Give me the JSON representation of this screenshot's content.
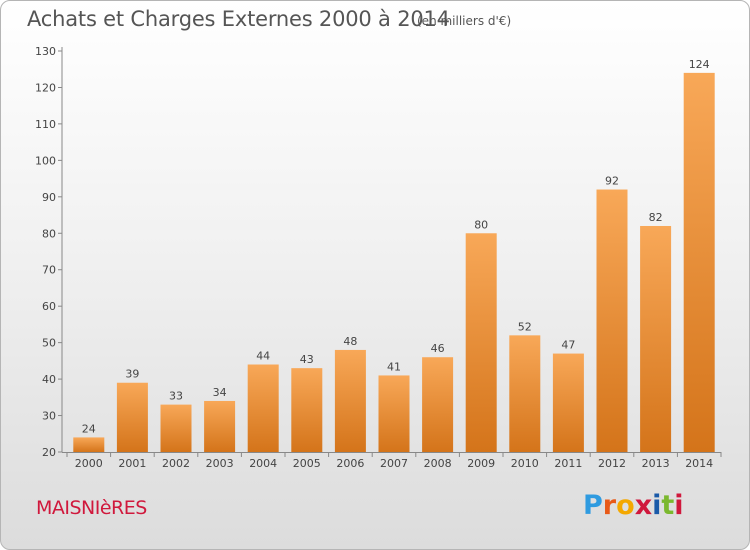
{
  "header": {
    "title": "Achats et Charges Externes 2000 à 2014",
    "unit": "(en milliers d'€)"
  },
  "footer": {
    "commune": "MAISNIèRES",
    "logo_letters": [
      "P",
      "r",
      "o",
      "x",
      "i",
      "t",
      "i"
    ],
    "logo_colors": [
      "#2f9be0",
      "#e85a18",
      "#f4a800",
      "#d0183c",
      "#1a5aa8",
      "#7bb82e",
      "#d0183c"
    ]
  },
  "chart_data": {
    "type": "bar",
    "title": "Achats et Charges Externes 2000 à 2014",
    "subtitle": "(en milliers d'€)",
    "categories": [
      "2000",
      "2001",
      "2002",
      "2003",
      "2004",
      "2005",
      "2006",
      "2007",
      "2008",
      "2009",
      "2010",
      "2011",
      "2012",
      "2013",
      "2014"
    ],
    "values": [
      24,
      39,
      33,
      34,
      44,
      43,
      48,
      41,
      46,
      80,
      52,
      47,
      92,
      82,
      124
    ],
    "ylim": [
      20,
      130
    ],
    "yticks": [
      20,
      30,
      40,
      50,
      60,
      70,
      80,
      90,
      100,
      110,
      120,
      130
    ],
    "grid": false,
    "colors": {
      "bar_light": "#f8a858",
      "bar_dark": "#d4741a",
      "axis": "#888888",
      "text": "#444444"
    }
  }
}
